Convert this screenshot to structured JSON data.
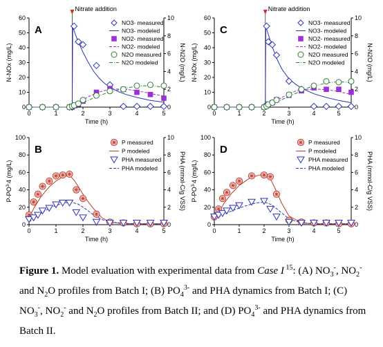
{
  "chart_data": [
    {
      "panel": "A",
      "type": "scatter",
      "annotation": "Nitrate addition",
      "annotation_x": 1.6,
      "xlabel": "Time (h)",
      "ylabel_left": "N-NO",
      "ylabel_left_suffix": "x (mg/L)",
      "ylabel_right": "N-N",
      "ylabel_right_suffix": "2O (mg/L)",
      "xlim": [
        0,
        5
      ],
      "xticks": [
        0,
        1,
        2,
        3,
        4,
        5
      ],
      "ylim_left": [
        0,
        60
      ],
      "yticks_left": [
        0,
        10,
        20,
        30,
        40,
        50,
        60
      ],
      "ylim_right": [
        0,
        10
      ],
      "yticks_right": [
        0,
        2,
        4,
        6,
        8,
        10
      ],
      "legend": [
        "NO3- measured",
        "NO3- modeled",
        "NO2- measured",
        "NO2- modeled",
        "N2O measured",
        "N2O modeled"
      ],
      "series": [
        {
          "name": "NO3- measured",
          "marker": "diamond",
          "color": "#2b33b8",
          "axis": "left",
          "x": [
            0,
            0.5,
            1,
            1.5,
            1.6,
            1.67,
            1.83,
            2,
            2.5,
            3,
            3.5,
            4,
            4.5,
            5
          ],
          "y": [
            0,
            0,
            0,
            0,
            0,
            54.5,
            44,
            42,
            28,
            15,
            0.5,
            0.5,
            0.5,
            0.5
          ]
        },
        {
          "name": "NO3- modeled",
          "line": "solid",
          "color": "#2b33b8",
          "axis": "left",
          "x": [
            0,
            1.6,
            1.62,
            1.7,
            1.8,
            1.9,
            2.0,
            2.2,
            2.4,
            2.6,
            2.8,
            3.0,
            3.3,
            3.6,
            4.0,
            4.5,
            5.0
          ],
          "y": [
            0,
            0,
            54,
            50,
            45,
            41,
            37,
            30,
            24,
            19.5,
            16,
            13.5,
            10.5,
            8.5,
            6.5,
            4.5,
            3.3
          ]
        },
        {
          "name": "NO2- measured",
          "marker": "square",
          "color": "#9b30d9",
          "axis": "left",
          "x": [
            0,
            0.5,
            1,
            1.5,
            1.6,
            1.7,
            1.83,
            2,
            2.5,
            3,
            3.5,
            4,
            4.5,
            5
          ],
          "y": [
            0,
            0,
            0,
            0,
            0,
            1,
            2,
            4,
            10,
            12.5,
            12,
            10,
            8.5,
            6
          ]
        },
        {
          "name": "NO2- modeled",
          "line": "dashed",
          "color": "#9b30d9",
          "axis": "left",
          "x": [
            0,
            1.6,
            1.8,
            2.0,
            2.2,
            2.5,
            2.8,
            3.0,
            3.3,
            3.6,
            4.0,
            4.3,
            4.6,
            5.0
          ],
          "y": [
            0,
            0,
            2.5,
            5,
            7,
            9.5,
            11.2,
            11.8,
            12.2,
            12,
            11,
            10,
            8.8,
            7.5
          ]
        },
        {
          "name": "N2O measured",
          "marker": "circle",
          "color": "#2e7d32",
          "axis": "right",
          "x": [
            0,
            0.5,
            1,
            1.5,
            1.6,
            1.67,
            1.83,
            2,
            2.5,
            3,
            3.5,
            4,
            4.5,
            5
          ],
          "y": [
            0,
            0,
            0,
            0,
            0.1,
            0.2,
            0.4,
            0.8,
            1.3,
            1.8,
            2.0,
            2.4,
            2.5,
            2.4
          ]
        },
        {
          "name": "N2O modeled",
          "line": "dashdot",
          "color": "#2e7d32",
          "axis": "right",
          "x": [
            0,
            1.6,
            1.8,
            2.0,
            2.3,
            2.6,
            3.0,
            3.4,
            3.8,
            4.2,
            4.5,
            4.8,
            5.0
          ],
          "y": [
            0,
            0,
            0.2,
            0.5,
            0.9,
            1.3,
            1.7,
            2.0,
            2.25,
            2.38,
            2.4,
            2.3,
            2.15
          ]
        }
      ]
    },
    {
      "panel": "C",
      "type": "scatter",
      "annotation": "Nitrate addition",
      "annotation_x": 2.05,
      "xlabel": "Time (h)",
      "ylabel_left": "N-NO",
      "ylabel_left_suffix": "x (mg/L)",
      "ylabel_right": "N-N",
      "ylabel_right_suffix": "2O (mg/L)",
      "xlim": [
        0,
        5.5
      ],
      "xticks": [
        0,
        1,
        2,
        3,
        4,
        5
      ],
      "ylim_left": [
        0,
        60
      ],
      "yticks_left": [
        0,
        10,
        20,
        30,
        40,
        50,
        60
      ],
      "ylim_right": [
        0,
        10
      ],
      "yticks_right": [
        0,
        2,
        4,
        6,
        8,
        10
      ],
      "legend": [
        "NO3- measured",
        "NO3- modeled",
        "NO2- measured",
        "NO2- modeled",
        "N2O measured",
        "N2O modeled"
      ],
      "series": [
        {
          "name": "NO3- measured",
          "marker": "diamond",
          "color": "#2b33b8",
          "axis": "left",
          "x": [
            0,
            0.5,
            1,
            1.5,
            2,
            2.1,
            2.17,
            2.33,
            2.5,
            3,
            3.5,
            4,
            4.5,
            5,
            5.5
          ],
          "y": [
            0,
            0,
            0,
            0,
            0,
            54.5,
            44,
            42,
            35,
            17.5,
            12,
            0.5,
            0.5,
            0.5,
            0.5
          ]
        },
        {
          "name": "NO3- modeled",
          "line": "solid",
          "color": "#2b33b8",
          "axis": "left",
          "x": [
            0,
            2.05,
            2.07,
            2.15,
            2.3,
            2.5,
            2.7,
            3.0,
            3.3,
            3.6,
            4.0,
            4.5,
            5.0,
            5.5
          ],
          "y": [
            0,
            0,
            54,
            50,
            42,
            33,
            26,
            19,
            15,
            12,
            9,
            6.5,
            4.5,
            3
          ]
        },
        {
          "name": "NO2- measured",
          "marker": "square",
          "color": "#9b30d9",
          "axis": "left",
          "x": [
            0,
            0.5,
            1,
            1.5,
            2,
            2.1,
            2.17,
            2.33,
            2.5,
            3,
            3.5,
            4,
            4.5,
            5,
            5.5
          ],
          "y": [
            0,
            0,
            0,
            0,
            0,
            1,
            2,
            3,
            5,
            8,
            11,
            13,
            12,
            12,
            10
          ]
        },
        {
          "name": "NO2- modeled",
          "line": "dashed",
          "color": "#9b30d9",
          "axis": "left",
          "x": [
            0,
            2.05,
            2.3,
            2.6,
            3.0,
            3.3,
            3.6,
            4.0,
            4.5,
            5.0,
            5.5
          ],
          "y": [
            0,
            0,
            2.5,
            5.5,
            9,
            11,
            11.8,
            12.2,
            11.8,
            10.5,
            8.5
          ]
        },
        {
          "name": "N2O measured",
          "marker": "circle",
          "color": "#2e7d32",
          "axis": "right",
          "x": [
            0,
            0.5,
            1,
            1.5,
            2,
            2.1,
            2.17,
            2.33,
            2.5,
            3,
            3.5,
            4,
            4.5,
            5,
            5.5
          ],
          "y": [
            0,
            0,
            0,
            0,
            0,
            0.1,
            0.3,
            0.5,
            0.8,
            1.4,
            2.0,
            2.4,
            2.9,
            2.8,
            2.9
          ]
        },
        {
          "name": "N2O modeled",
          "line": "dashdot",
          "color": "#2e7d32",
          "axis": "right",
          "x": [
            0,
            2.05,
            2.3,
            2.6,
            3.0,
            3.4,
            3.8,
            4.2,
            4.6,
            5.0,
            5.3,
            5.5
          ],
          "y": [
            0,
            0,
            0.3,
            0.7,
            1.2,
            1.7,
            2.2,
            2.5,
            2.75,
            2.85,
            2.8,
            2.65
          ]
        }
      ]
    },
    {
      "panel": "B",
      "type": "scatter",
      "xlabel": "Time (h)",
      "ylabel_left": "P-PO",
      "ylabel_left_suffix": "4 (mg/L)",
      "ylabel_left_sup": "3-",
      "ylabel_right": "PHA (mmol-C/g VSS)",
      "xlim": [
        0,
        5
      ],
      "xticks": [
        0,
        1,
        2,
        3,
        4,
        5
      ],
      "ylim_left": [
        0,
        100
      ],
      "yticks_left": [
        0,
        20,
        40,
        60,
        80,
        100
      ],
      "ylim_right": [
        0,
        10
      ],
      "yticks_right": [
        0,
        2,
        4,
        6,
        8,
        10
      ],
      "legend": [
        "P measured",
        "P modeled",
        "PHA measured",
        "PHA modeled"
      ],
      "series": [
        {
          "name": "P measured",
          "marker": "asterisk-circle",
          "color": "#c0392b",
          "axis": "left",
          "x": [
            0,
            0.17,
            0.33,
            0.5,
            0.75,
            1,
            1.25,
            1.5,
            1.75,
            2,
            2.5,
            3,
            3.5,
            4,
            4.5,
            5
          ],
          "y": [
            11,
            26,
            35,
            44,
            50,
            56,
            57,
            58,
            40,
            30,
            12,
            3,
            2,
            1,
            1,
            1
          ]
        },
        {
          "name": "P modeled",
          "line": "solid",
          "color": "#c0392b",
          "axis": "left",
          "x": [
            0,
            0.2,
            0.4,
            0.6,
            0.8,
            1.0,
            1.2,
            1.5,
            1.7,
            1.9,
            2.1,
            2.4,
            2.7,
            3.0,
            3.5,
            4,
            5
          ],
          "y": [
            8,
            20,
            30,
            38,
            45,
            50,
            54,
            57,
            50,
            40,
            30,
            18,
            8,
            3,
            1,
            1,
            1
          ]
        },
        {
          "name": "PHA measured",
          "marker": "triangle-down",
          "color": "#2b33b8",
          "axis": "right",
          "x": [
            0,
            0.17,
            0.33,
            0.5,
            0.75,
            1,
            1.25,
            1.5,
            1.75,
            2,
            2.5,
            3,
            3.5,
            4,
            4.5,
            5
          ],
          "y": [
            0.6,
            0.8,
            1.1,
            1.6,
            1.9,
            2.3,
            2.5,
            2.5,
            1.4,
            0.8,
            0.3,
            0.2,
            0.2,
            0.2,
            0.2,
            0.2
          ]
        },
        {
          "name": "PHA modeled",
          "line": "dashed",
          "color": "#2b33b8",
          "axis": "right",
          "x": [
            0,
            0.3,
            0.6,
            0.9,
            1.2,
            1.5,
            1.8,
            2.1,
            2.4,
            2.7,
            3.0,
            3.5,
            4,
            5
          ],
          "y": [
            0.3,
            1.0,
            1.6,
            2.1,
            2.4,
            2.6,
            2.4,
            1.8,
            1.1,
            0.6,
            0.3,
            0.15,
            0.1,
            0.1
          ]
        }
      ]
    },
    {
      "panel": "D",
      "type": "scatter",
      "xlabel": "Time (h)",
      "ylabel_left": "P-PO",
      "ylabel_left_suffix": "4 (mg/L)",
      "ylabel_left_sup": "3-",
      "ylabel_right": "PHA (mmol-C/g VSS)",
      "xlim": [
        0,
        5.5
      ],
      "xticks": [
        0,
        1,
        2,
        3,
        4,
        5
      ],
      "ylim_left": [
        0,
        100
      ],
      "yticks_left": [
        0,
        20,
        40,
        60,
        80,
        100
      ],
      "ylim_right": [
        0,
        10
      ],
      "yticks_right": [
        0,
        2,
        4,
        6,
        8,
        10
      ],
      "legend": [
        "P measured",
        "P modeled",
        "PHA measured",
        "PHA modeled"
      ],
      "series": [
        {
          "name": "P measured",
          "marker": "asterisk-circle",
          "color": "#c0392b",
          "axis": "left",
          "x": [
            0,
            0.17,
            0.33,
            0.5,
            0.75,
            1,
            1.5,
            2,
            2.25,
            2.5,
            3,
            3.5,
            4,
            4.5,
            5,
            5.5
          ],
          "y": [
            9,
            18,
            30,
            37,
            45,
            50,
            56,
            57,
            55,
            35,
            5,
            3,
            2,
            2,
            1,
            1
          ]
        },
        {
          "name": "P modeled",
          "line": "solid",
          "color": "#c0392b",
          "axis": "left",
          "x": [
            0,
            0.2,
            0.4,
            0.7,
            1.0,
            1.4,
            1.8,
            2.1,
            2.3,
            2.5,
            2.7,
            3.0,
            3.5,
            4,
            5,
            5.5
          ],
          "y": [
            6,
            15,
            25,
            36,
            45,
            53,
            57,
            58,
            50,
            38,
            25,
            10,
            2,
            1,
            1,
            1
          ]
        },
        {
          "name": "PHA measured",
          "marker": "triangle-down",
          "color": "#2b33b8",
          "axis": "right",
          "x": [
            0,
            0.17,
            0.33,
            0.5,
            0.75,
            1,
            1.5,
            2,
            2.25,
            2.5,
            3,
            3.5,
            4,
            4.5,
            5,
            5.5
          ],
          "y": [
            0.9,
            1.1,
            1.3,
            1.6,
            1.9,
            2.2,
            2.6,
            2.7,
            1.8,
            0.9,
            0.3,
            0.2,
            0.2,
            0.2,
            0.2,
            0.2
          ]
        },
        {
          "name": "PHA modeled",
          "line": "dashed",
          "color": "#2b33b8",
          "axis": "right",
          "x": [
            0,
            0.4,
            0.8,
            1.2,
            1.6,
            2.0,
            2.3,
            2.6,
            2.9,
            3.2,
            3.6,
            4,
            5,
            5.5
          ],
          "y": [
            0.6,
            1.2,
            1.7,
            2.1,
            2.45,
            2.6,
            2.3,
            1.6,
            0.9,
            0.45,
            0.2,
            0.1,
            0.1,
            0.1
          ]
        }
      ]
    }
  ],
  "caption": {
    "figure_label": "Figure 1.",
    "text_1": " Model evaluation with experimental data from ",
    "case": "Case I",
    "ref": " 15",
    "text_2": ": (A) NO",
    "t2_sup": "3",
    "t2_sup2": "-",
    "text_3": ", NO",
    "t3_sub": "2",
    "t3_sup": "-",
    "text_4": " and N",
    "t4_sub": "2",
    "text_5": "O profiles from Batch I; (B) PO",
    "t5_sub": "4",
    "t5_sup": "3-",
    "text_6": " and PHA dynamics from Batch I; (C) NO",
    "t6_sub": "3",
    "t6_sup": "-",
    "text_7": ", NO",
    "t7_sub": "2",
    "t7_sup": "-",
    "text_8": " and N",
    "t8_sub": "2",
    "text_9": "O profiles from Batch II; and (D) PO",
    "t9_sub": "4",
    "t9_sup": "3-",
    "text_10": " and PHA dynamics from Batch II."
  }
}
